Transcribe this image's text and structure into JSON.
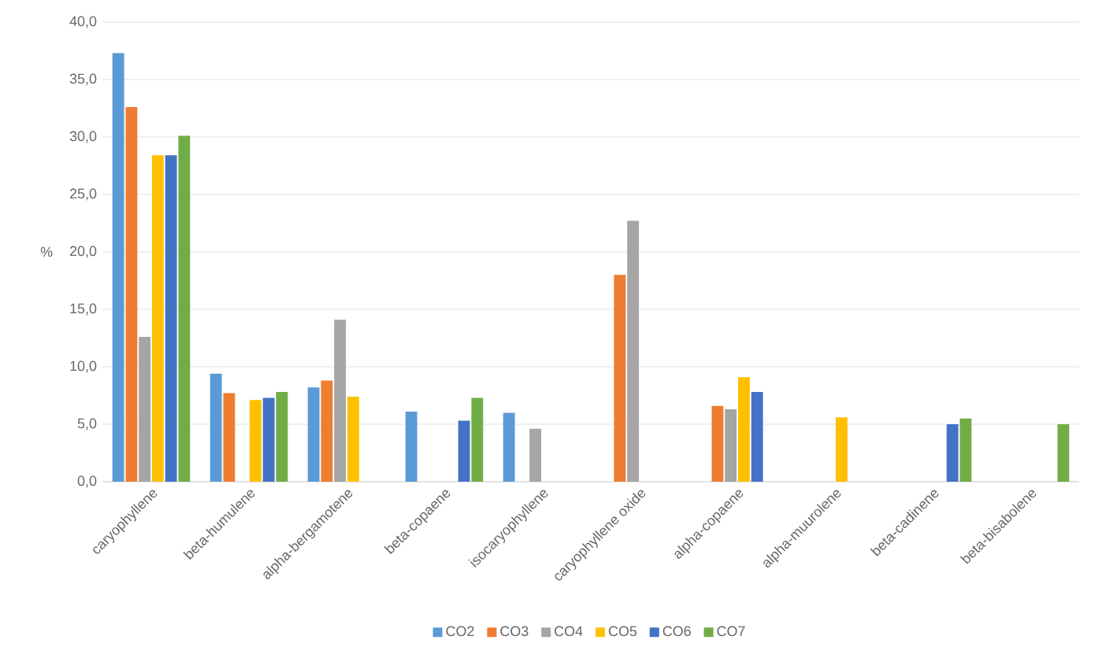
{
  "chart_data": {
    "type": "bar",
    "ylabel": "%",
    "categories": [
      "caryophyllene",
      "beta-humulene",
      "alpha-bergamotene",
      "beta-copaene",
      "isocaryophyllene",
      "caryophyllene oxide",
      "alpha-copaene",
      "alpha-muurolene",
      "beta-cadinene",
      "beta-bisabolene"
    ],
    "series": [
      {
        "name": "CO2",
        "color": "#5b9bd5",
        "values": [
          37.3,
          9.4,
          8.2,
          6.1,
          6.0,
          null,
          null,
          null,
          null,
          null
        ]
      },
      {
        "name": "CO3",
        "color": "#ed7d31",
        "values": [
          32.6,
          7.7,
          8.8,
          null,
          null,
          18.0,
          6.6,
          null,
          null,
          null
        ]
      },
      {
        "name": "CO4",
        "color": "#a5a5a5",
        "values": [
          12.6,
          null,
          14.1,
          null,
          4.6,
          22.7,
          6.3,
          null,
          null,
          null
        ]
      },
      {
        "name": "CO5",
        "color": "#ffc000",
        "values": [
          28.4,
          7.1,
          7.4,
          null,
          null,
          null,
          9.1,
          5.6,
          null,
          null
        ]
      },
      {
        "name": "CO6",
        "color": "#4472c4",
        "values": [
          28.4,
          7.3,
          null,
          5.3,
          null,
          null,
          7.8,
          null,
          5.0,
          null
        ]
      },
      {
        "name": "CO7",
        "color": "#70ad47",
        "values": [
          30.1,
          7.8,
          null,
          7.3,
          null,
          null,
          null,
          null,
          5.5,
          5.0
        ]
      }
    ],
    "ylim": [
      0,
      40
    ],
    "yticks": [
      {
        "value": 0,
        "label": "0,0"
      },
      {
        "value": 5,
        "label": "5,0"
      },
      {
        "value": 10,
        "label": "10,0"
      },
      {
        "value": 15,
        "label": "15,0"
      },
      {
        "value": 20,
        "label": "20,0"
      },
      {
        "value": 25,
        "label": "25,0"
      },
      {
        "value": 30,
        "label": "30,0"
      },
      {
        "value": 35,
        "label": "35,0"
      },
      {
        "value": 40,
        "label": "40,0"
      }
    ],
    "grid": "y",
    "legend": "bottom"
  }
}
